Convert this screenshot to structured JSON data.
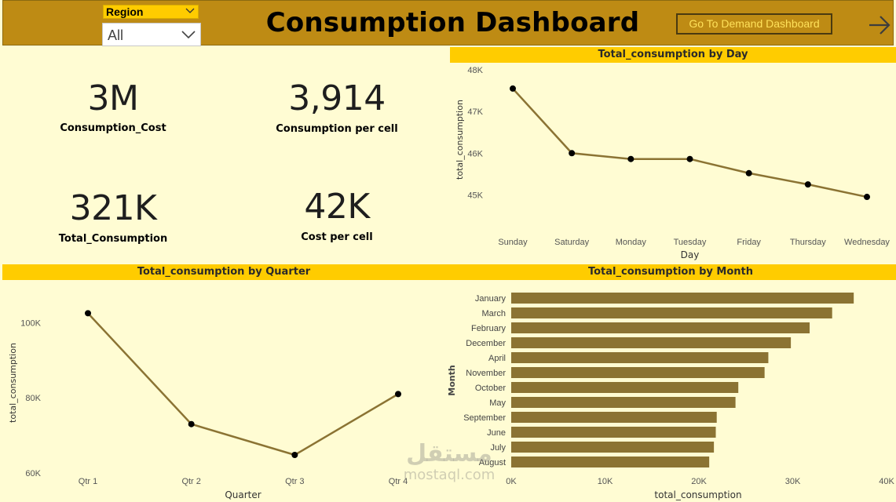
{
  "header": {
    "title": "Consumption Dashboard",
    "nav_button": "Go To Demand Dashboard",
    "arrow_icon": "arrow-right-icon",
    "bg_color": "#be8b14"
  },
  "slicer": {
    "label": "Region",
    "selected": "All"
  },
  "cards": [
    {
      "value": "3M",
      "label": "Consumption_Cost"
    },
    {
      "value": "3,914",
      "label": "Consumption per cell"
    },
    {
      "value": "321K",
      "label": "Total_Consumption"
    },
    {
      "value": "42K",
      "label": "Cost per cell"
    }
  ],
  "watermark": {
    "arabic": "مستقل",
    "latin": "mostaql.com"
  },
  "chart_data": [
    {
      "type": "line",
      "title": "Total_consumption by Day",
      "xlabel": "Day",
      "ylabel": "total_consumption",
      "categories": [
        "Sunday",
        "Saturday",
        "Monday",
        "Tuesday",
        "Friday",
        "Thursday",
        "Wednesday"
      ],
      "values": [
        47550,
        46000,
        45860,
        45860,
        45520,
        45250,
        44950
      ],
      "ylim": [
        44650,
        48000
      ],
      "yticks": [
        45000,
        46000,
        47000,
        48000
      ],
      "ytick_labels": [
        "45K",
        "46K",
        "47K",
        "48K"
      ],
      "color": "#8b7333"
    },
    {
      "type": "line",
      "title": "Total_consumption by Quarter",
      "xlabel": "Quarter",
      "ylabel": "total_consumption",
      "categories": [
        "Qtr 1",
        "Qtr 2",
        "Qtr 3",
        "Qtr 4"
      ],
      "values": [
        102500,
        73000,
        64800,
        81000
      ],
      "ylim": [
        60000,
        108000
      ],
      "yticks": [
        60000,
        80000,
        100000
      ],
      "ytick_labels": [
        "60K",
        "80K",
        "100K"
      ],
      "color": "#8b7333"
    },
    {
      "type": "bar",
      "orientation": "horizontal",
      "title": "Total_consumption by Month",
      "xlabel": "total_consumption",
      "ylabel": "Month",
      "categories": [
        "January",
        "March",
        "February",
        "December",
        "April",
        "November",
        "October",
        "May",
        "September",
        "June",
        "July",
        "August"
      ],
      "values": [
        36500,
        34200,
        31800,
        29800,
        27400,
        27000,
        24200,
        23900,
        21900,
        21800,
        21600,
        21100
      ],
      "xlim": [
        0,
        40000
      ],
      "xticks": [
        0,
        10000,
        20000,
        30000,
        40000
      ],
      "xtick_labels": [
        "0K",
        "10K",
        "20K",
        "30K",
        "40K"
      ],
      "color": "#8b7333"
    }
  ]
}
